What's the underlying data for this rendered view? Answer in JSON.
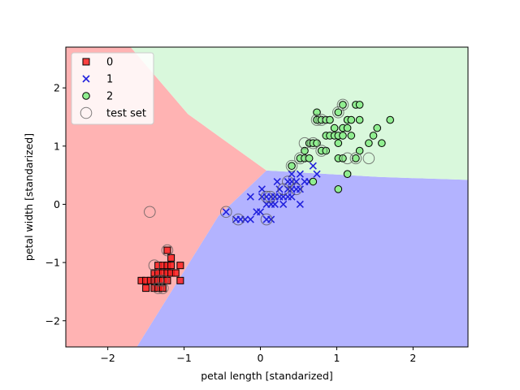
{
  "chart_data": {
    "type": "scatter",
    "title": "",
    "xlabel": "petal length [standarized]",
    "ylabel": "petal width [standarized]",
    "xlim": [
      -2.55,
      2.72
    ],
    "ylim": [
      -2.45,
      2.7
    ],
    "xticks": [
      -2,
      -1,
      0,
      1,
      2
    ],
    "yticks": [
      -2,
      -1,
      0,
      1,
      2
    ],
    "xtick_labels": [
      "−2",
      "−1",
      "0",
      "1",
      "2"
    ],
    "ytick_labels": [
      "−2",
      "−1",
      "0",
      "1",
      "2"
    ],
    "grid": false,
    "legend_position": "top-left",
    "decision_regions": [
      {
        "class": "0",
        "color": "#ffb3b3",
        "polygon": [
          [
            -2.55,
            2.7
          ],
          [
            -1.7,
            2.7
          ],
          [
            -0.95,
            1.55
          ],
          [
            0.08,
            0.58
          ],
          [
            -0.55,
            -0.2
          ],
          [
            -1.62,
            -2.45
          ],
          [
            -2.55,
            -2.45
          ]
        ]
      },
      {
        "class": "1",
        "color": "#b3b3ff",
        "polygon": [
          [
            0.08,
            0.58
          ],
          [
            -0.55,
            -0.2
          ],
          [
            -1.62,
            -2.45
          ],
          [
            2.72,
            -2.45
          ],
          [
            2.72,
            0.42
          ],
          [
            1.55,
            0.47
          ],
          [
            0.35,
            0.56
          ]
        ]
      },
      {
        "class": "2",
        "color": "#d9f8dc",
        "polygon": [
          [
            -1.7,
            2.7
          ],
          [
            2.72,
            2.7
          ],
          [
            2.72,
            0.42
          ],
          [
            1.55,
            0.47
          ],
          [
            0.35,
            0.56
          ],
          [
            0.08,
            0.58
          ],
          [
            -0.95,
            1.55
          ]
        ]
      }
    ],
    "series": [
      {
        "name": "0",
        "marker": "square",
        "color": "#ff2020",
        "points": [
          [
            -1.56,
            -1.31
          ],
          [
            -1.5,
            -1.31
          ],
          [
            -1.5,
            -1.44
          ],
          [
            -1.44,
            -1.31
          ],
          [
            -1.39,
            -1.18
          ],
          [
            -1.39,
            -1.31
          ],
          [
            -1.39,
            -1.44
          ],
          [
            -1.34,
            -1.05
          ],
          [
            -1.34,
            -1.18
          ],
          [
            -1.34,
            -1.31
          ],
          [
            -1.34,
            -1.44
          ],
          [
            -1.28,
            -1.05
          ],
          [
            -1.28,
            -1.18
          ],
          [
            -1.28,
            -1.31
          ],
          [
            -1.28,
            -1.44
          ],
          [
            -1.22,
            -0.79
          ],
          [
            -1.22,
            -1.05
          ],
          [
            -1.22,
            -1.18
          ],
          [
            -1.22,
            -1.31
          ],
          [
            -1.17,
            -0.92
          ],
          [
            -1.17,
            -1.05
          ],
          [
            -1.17,
            -1.18
          ],
          [
            -1.11,
            -1.18
          ],
          [
            -1.05,
            -1.05
          ],
          [
            -1.05,
            -1.31
          ]
        ]
      },
      {
        "name": "1",
        "marker": "x",
        "color": "#2222dd",
        "points": [
          [
            -0.45,
            -0.13
          ],
          [
            -0.32,
            -0.26
          ],
          [
            -0.26,
            -0.26
          ],
          [
            -0.2,
            -0.26
          ],
          [
            -0.13,
            -0.26
          ],
          [
            -0.13,
            0.13
          ],
          [
            -0.05,
            -0.13
          ],
          [
            0.0,
            -0.13
          ],
          [
            0.02,
            0.13
          ],
          [
            0.02,
            0.26
          ],
          [
            0.08,
            -0.26
          ],
          [
            0.08,
            -0.0
          ],
          [
            0.08,
            0.13
          ],
          [
            0.14,
            0.13
          ],
          [
            0.14,
            0.0
          ],
          [
            0.14,
            -0.26
          ],
          [
            0.19,
            0.13
          ],
          [
            0.19,
            -0.0
          ],
          [
            0.22,
            0.39
          ],
          [
            0.25,
            0.13
          ],
          [
            0.25,
            0.26
          ],
          [
            0.3,
            0.13
          ],
          [
            0.3,
            0.0
          ],
          [
            0.36,
            0.13
          ],
          [
            0.36,
            0.26
          ],
          [
            0.36,
            0.39
          ],
          [
            0.41,
            0.26
          ],
          [
            0.41,
            0.52
          ],
          [
            0.41,
            0.13
          ],
          [
            0.41,
            0.39
          ],
          [
            0.47,
            0.26
          ],
          [
            0.47,
            0.39
          ],
          [
            0.52,
            0.26
          ],
          [
            0.52,
            0.0
          ],
          [
            0.52,
            0.52
          ],
          [
            0.58,
            0.39
          ],
          [
            0.64,
            0.39
          ],
          [
            0.69,
            0.66
          ],
          [
            0.74,
            0.52
          ]
        ]
      },
      {
        "name": "2",
        "marker": "circle",
        "color": "#90ee90",
        "points": [
          [
            0.41,
            0.66
          ],
          [
            0.52,
            0.79
          ],
          [
            0.58,
            0.79
          ],
          [
            0.58,
            0.92
          ],
          [
            0.64,
            0.79
          ],
          [
            0.64,
            1.05
          ],
          [
            0.69,
            1.05
          ],
          [
            0.69,
            0.39
          ],
          [
            0.74,
            1.05
          ],
          [
            0.74,
            1.45
          ],
          [
            0.74,
            1.58
          ],
          [
            0.8,
            0.92
          ],
          [
            0.8,
            1.45
          ],
          [
            0.86,
            0.92
          ],
          [
            0.86,
            1.45
          ],
          [
            0.86,
            1.18
          ],
          [
            0.91,
            1.45
          ],
          [
            0.91,
            1.18
          ],
          [
            0.97,
            1.18
          ],
          [
            0.97,
            1.31
          ],
          [
            1.02,
            0.79
          ],
          [
            1.02,
            1.05
          ],
          [
            1.02,
            1.18
          ],
          [
            1.02,
            1.58
          ],
          [
            1.02,
            0.26
          ],
          [
            1.08,
            1.31
          ],
          [
            1.08,
            1.18
          ],
          [
            1.08,
            1.71
          ],
          [
            1.08,
            0.79
          ],
          [
            1.14,
            1.45
          ],
          [
            1.14,
            1.31
          ],
          [
            1.14,
            0.52
          ],
          [
            1.19,
            1.18
          ],
          [
            1.19,
            1.45
          ],
          [
            1.25,
            0.79
          ],
          [
            1.25,
            1.71
          ],
          [
            1.3,
            1.71
          ],
          [
            1.3,
            1.45
          ],
          [
            1.3,
            0.92
          ],
          [
            1.42,
            1.05
          ],
          [
            1.48,
            1.18
          ],
          [
            1.53,
            1.31
          ],
          [
            1.59,
            1.05
          ],
          [
            1.7,
            1.45
          ]
        ]
      },
      {
        "name": "test set",
        "marker": "ring",
        "color": "#555555",
        "points": [
          [
            -1.22,
            -0.79
          ],
          [
            -1.39,
            -1.05
          ],
          [
            -1.34,
            -1.31
          ],
          [
            -1.34,
            -1.44
          ],
          [
            -1.28,
            -1.31
          ],
          [
            -1.28,
            -1.44
          ],
          [
            -1.45,
            -0.13
          ],
          [
            -0.45,
            -0.13
          ],
          [
            -0.29,
            -0.26
          ],
          [
            0.08,
            -0.26
          ],
          [
            0.08,
            0.13
          ],
          [
            0.13,
            0.13
          ],
          [
            0.3,
            0.26
          ],
          [
            0.36,
            0.39
          ],
          [
            0.41,
            0.66
          ],
          [
            0.47,
            0.26
          ],
          [
            0.52,
            0.79
          ],
          [
            0.58,
            1.05
          ],
          [
            0.69,
            1.05
          ],
          [
            0.74,
            1.45
          ],
          [
            0.8,
            0.92
          ],
          [
            0.8,
            1.45
          ],
          [
            1.02,
            1.58
          ],
          [
            1.08,
            1.71
          ],
          [
            1.14,
            0.79
          ],
          [
            1.25,
            0.79
          ],
          [
            1.42,
            0.79
          ]
        ]
      }
    ]
  }
}
